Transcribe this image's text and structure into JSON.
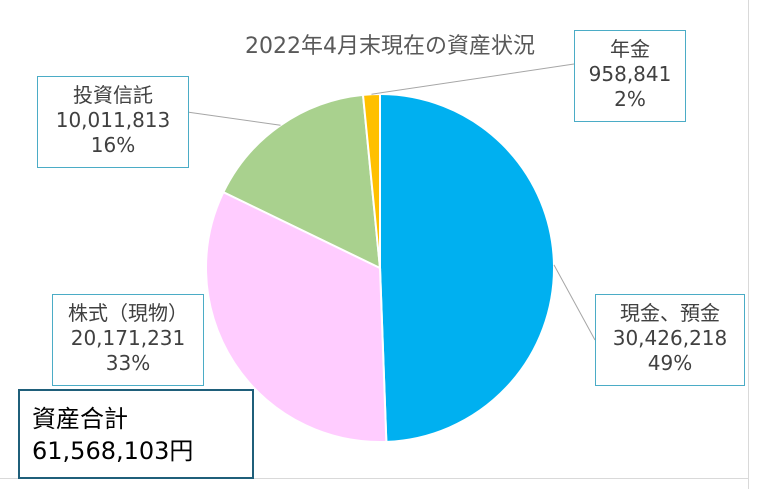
{
  "chart_data": {
    "type": "pie",
    "title": "2022年4月末現在の資産状況",
    "slices": [
      {
        "name": "現金、預金",
        "value": "30,426,218",
        "amount": 30426218,
        "percent": "49%",
        "color": "#00b0f0"
      },
      {
        "name": "株式（現物）",
        "value": "20,171,231",
        "amount": 20171231,
        "percent": "33%",
        "color": "#ffccff"
      },
      {
        "name": "投資信託",
        "value": "10,011,813",
        "amount": 10011813,
        "percent": "16%",
        "color": "#a9d18e"
      },
      {
        "name": "年金",
        "value": "958,841",
        "amount": 958841,
        "percent": "2%",
        "color": "#ffc000"
      }
    ],
    "total_label": "資産合計",
    "total_value": "61,568,103円"
  }
}
